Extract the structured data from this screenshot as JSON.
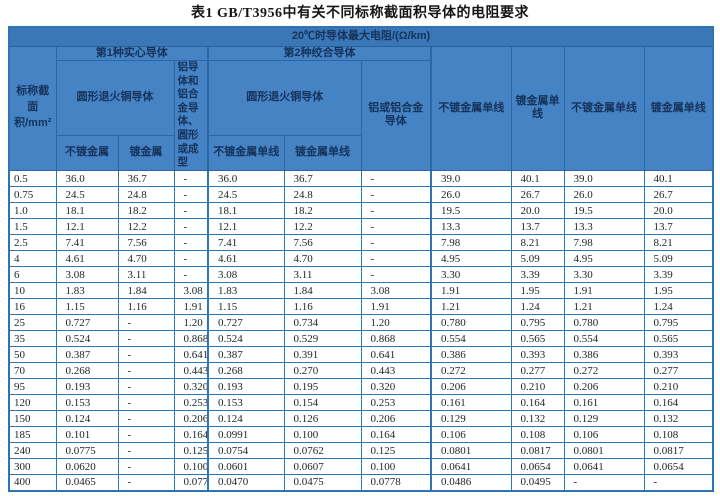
{
  "title": "表1  GB/T3956中有关不同标称截面积导体的电阻要求",
  "colors": {
    "banner_bg": "#3b76b6",
    "header_bg": "#4583c5",
    "header_text": "#15335a",
    "border_blue": "#2e75b6",
    "data_text": "#252525"
  },
  "table": {
    "banner": "20℃时导体最大电阻/(Ω/km)",
    "col1_header": "标称截面积/mm²",
    "group1": "第1种实心导体",
    "group2": "第2种绞合导体",
    "sub": {
      "copper_solid": "圆形退火铜导体",
      "alu_solid": "铝导体和铝合金导体、圆形或成型",
      "copper_stranded": "圆形退火铜导体",
      "alu_stranded": "铝或铝合金导体",
      "unplated": "不镀金属",
      "plated": "镀金属",
      "unplated_wire": "不镀金属单线",
      "plated_wire": "镀金属单线"
    },
    "tail_headers": [
      "不镀金属单线",
      "镀金属单线",
      "不镀金属单线",
      "镀金属单线"
    ],
    "rows": [
      [
        "0.5",
        "36.0",
        "36.7",
        "-",
        "36.0",
        "36.7",
        "-",
        "39.0",
        "40.1",
        "39.0",
        "40.1"
      ],
      [
        "0.75",
        "24.5",
        "24.8",
        "-",
        "24.5",
        "24.8",
        "-",
        "26.0",
        "26.7",
        "26.0",
        "26.7"
      ],
      [
        "1.0",
        "18.1",
        "18.2",
        "-",
        "18.1",
        "18.2",
        "-",
        "19.5",
        "20.0",
        "19.5",
        "20.0"
      ],
      [
        "1.5",
        "12.1",
        "12.2",
        "-",
        "12.1",
        "12.2",
        "-",
        "13.3",
        "13.7",
        "13.3",
        "13.7"
      ],
      [
        "2.5",
        "7.41",
        "7.56",
        "-",
        "7.41",
        "7.56",
        "-",
        "7.98",
        "8.21",
        "7.98",
        "8.21"
      ],
      [
        "4",
        "4.61",
        "4.70",
        "-",
        "4.61",
        "4.70",
        "-",
        "4.95",
        "5.09",
        "4.95",
        "5.09"
      ],
      [
        "6",
        "3.08",
        "3.11",
        "-",
        "3.08",
        "3.11",
        "-",
        "3.30",
        "3.39",
        "3.30",
        "3.39"
      ],
      [
        "10",
        "1.83",
        "1.84",
        "3.08",
        "1.83",
        "1.84",
        "3.08",
        "1.91",
        "1.95",
        "1.91",
        "1.95"
      ],
      [
        "16",
        "1.15",
        "1.16",
        "1.91",
        "1.15",
        "1.16",
        "1.91",
        "1.21",
        "1.24",
        "1.21",
        "1.24"
      ],
      [
        "25",
        "0.727",
        "-",
        "1.20",
        "0.727",
        "0.734",
        "1.20",
        "0.780",
        "0.795",
        "0.780",
        "0.795"
      ],
      [
        "35",
        "0.524",
        "-",
        "0.868",
        "0.524",
        "0.529",
        "0.868",
        "0.554",
        "0.565",
        "0.554",
        "0.565"
      ],
      [
        "50",
        "0.387",
        "-",
        "0.641",
        "0.387",
        "0.391",
        "0.641",
        "0.386",
        "0.393",
        "0.386",
        "0.393"
      ],
      [
        "70",
        "0.268",
        "-",
        "0.443",
        "0.268",
        "0.270",
        "0.443",
        "0.272",
        "0.277",
        "0.272",
        "0.277"
      ],
      [
        "95",
        "0.193",
        "-",
        "0.320",
        "0.193",
        "0.195",
        "0.320",
        "0.206",
        "0.210",
        "0.206",
        "0.210"
      ],
      [
        "120",
        "0.153",
        "-",
        "0.253",
        "0.153",
        "0.154",
        "0.253",
        "0.161",
        "0.164",
        "0.161",
        "0.164"
      ],
      [
        "150",
        "0.124",
        "-",
        "0.206",
        "0.124",
        "0.126",
        "0.206",
        "0.129",
        "0.132",
        "0.129",
        "0.132"
      ],
      [
        "185",
        "0.101",
        "-",
        "0.164",
        "0.0991",
        "0.100",
        "0.164",
        "0.106",
        "0.108",
        "0.106",
        "0.108"
      ],
      [
        "240",
        "0.0775",
        "-",
        "0.125",
        "0.0754",
        "0.0762",
        "0.125",
        "0.0801",
        "0.0817",
        "0.0801",
        "0.0817"
      ],
      [
        "300",
        "0.0620",
        "-",
        "0.100",
        "0.0601",
        "0.0607",
        "0.100",
        "0.0641",
        "0.0654",
        "0.0641",
        "0.0654"
      ],
      [
        "400",
        "0.0465",
        "-",
        "0.077",
        "0.0470",
        "0.0475",
        "0.0778",
        "0.0486",
        "0.0495",
        "-",
        "-"
      ]
    ]
  }
}
